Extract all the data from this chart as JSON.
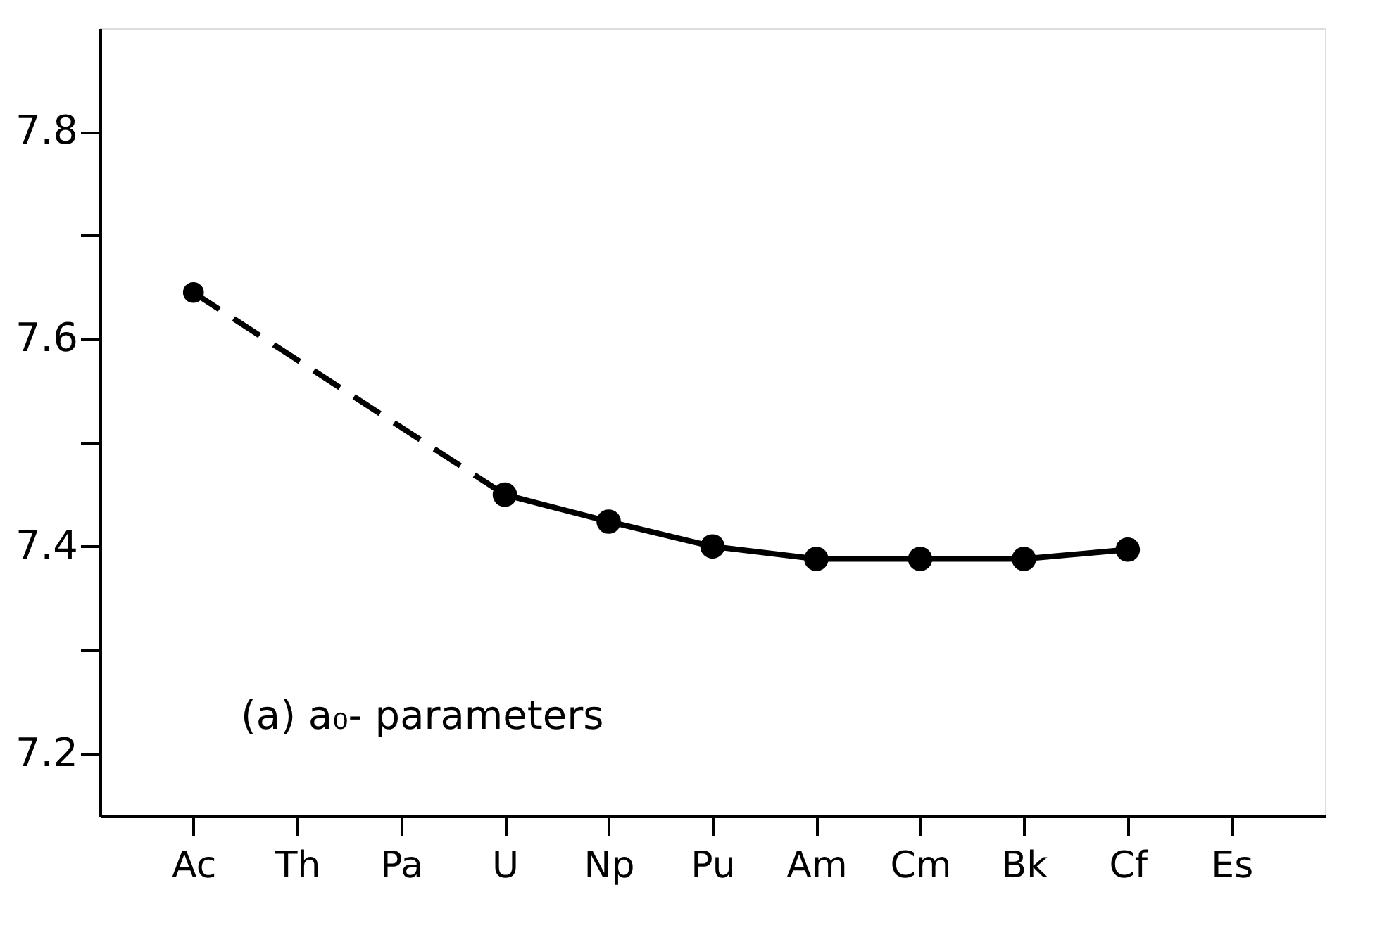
{
  "chart_data": {
    "type": "line",
    "categories": [
      "Ac",
      "Th",
      "Pa",
      "U",
      "Np",
      "Pu",
      "Am",
      "Cm",
      "Bk",
      "Cf",
      "Es"
    ],
    "series": [
      {
        "color": "#000000",
        "line_style": "dashed",
        "marker": "circle",
        "values": [
          7.645,
          null,
          null,
          7.45,
          null,
          null,
          null,
          null,
          null,
          null,
          null
        ]
      },
      {
        "color": "#000000",
        "line_style": "solid",
        "marker": "circle",
        "values": [
          null,
          null,
          null,
          7.45,
          7.424,
          7.4,
          7.388,
          7.388,
          7.388,
          7.397,
          null
        ]
      }
    ],
    "ylim": [
      7.14,
      7.9
    ],
    "yticks": [
      7.2,
      {
        "value": 7.3,
        "label": null
      },
      7.4,
      {
        "value": 7.5,
        "label": null
      },
      7.6,
      {
        "value": 7.7,
        "label": null
      },
      7.8
    ],
    "annotations": [
      "(a) a₀- parameters"
    ],
    "grid": false
  }
}
